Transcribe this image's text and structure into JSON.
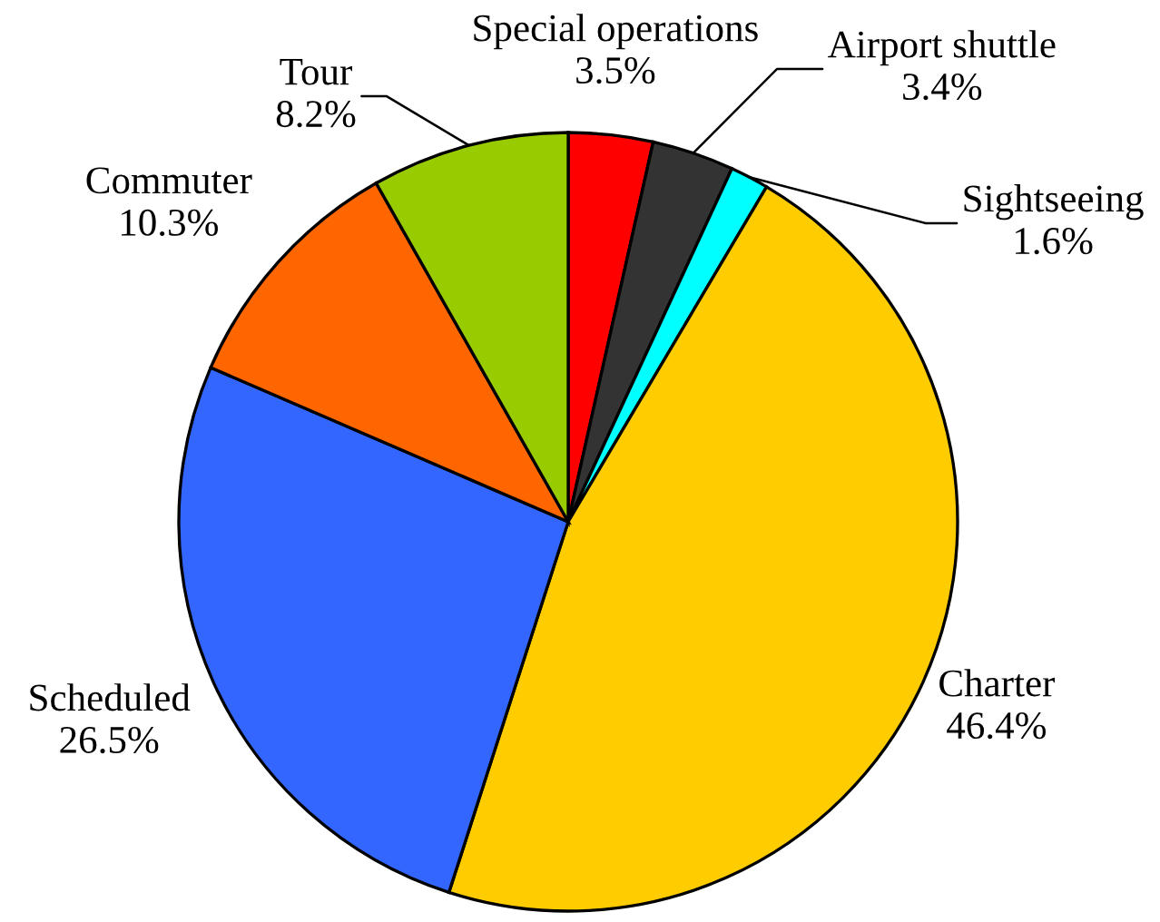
{
  "chart_data": {
    "type": "pie",
    "categories": [
      "Special operations",
      "Airport shuttle",
      "Sightseeing",
      "Charter",
      "Scheduled",
      "Commuter",
      "Tour"
    ],
    "values": [
      3.5,
      3.4,
      1.6,
      46.4,
      26.5,
      10.3,
      8.2
    ],
    "value_labels": [
      "3.5%",
      "3.4%",
      "1.6%",
      "46.4%",
      "26.5%",
      "10.3%",
      "8.2%"
    ],
    "colors": [
      "#ff0000",
      "#333333",
      "#00ffff",
      "#ffcc00",
      "#3366ff",
      "#ff6600",
      "#99cc00"
    ]
  }
}
